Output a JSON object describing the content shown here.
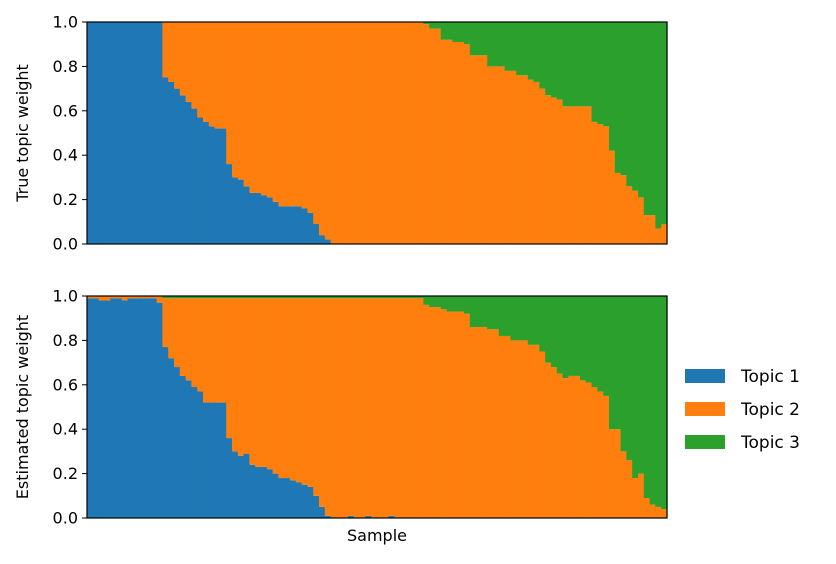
{
  "chart_data": {
    "type": "bar",
    "stacked": true,
    "n_samples": 100,
    "legend": {
      "placement": "right",
      "entries": [
        {
          "name": "Topic 1",
          "color": "#1f77b4"
        },
        {
          "name": "Topic 2",
          "color": "#ff7f0e"
        },
        {
          "name": "Topic 3",
          "color": "#2ca02c"
        }
      ]
    },
    "xlabel": "Sample",
    "panels": [
      {
        "ylabel": "True topic weight",
        "ylim": [
          0,
          1
        ],
        "yticks": [
          "0.0",
          "0.2",
          "0.4",
          "0.6",
          "0.8",
          "1.0"
        ],
        "series": [
          {
            "name": "Topic 1",
            "values": [
              1.0,
              1.0,
              1.0,
              1.0,
              1.0,
              1.0,
              1.0,
              1.0,
              1.0,
              1.0,
              1.0,
              1.0,
              1.0,
              0.75,
              0.73,
              0.7,
              0.67,
              0.64,
              0.61,
              0.57,
              0.55,
              0.53,
              0.52,
              0.52,
              0.36,
              0.3,
              0.29,
              0.26,
              0.23,
              0.23,
              0.22,
              0.21,
              0.19,
              0.17,
              0.17,
              0.17,
              0.17,
              0.16,
              0.14,
              0.09,
              0.04,
              0.02,
              0.0,
              0.0,
              0.0,
              0.0,
              0.0,
              0.0,
              0.0,
              0.0,
              0.0,
              0.0,
              0.0,
              0.0,
              0.0,
              0.0,
              0.0,
              0.0,
              0.0,
              0.0,
              0.0,
              0.0,
              0.0,
              0.0,
              0.0,
              0.0,
              0.0,
              0.0,
              0.0,
              0.0,
              0.0,
              0.0,
              0.0,
              0.0,
              0.0,
              0.0,
              0.0,
              0.0,
              0.0,
              0.0,
              0.0,
              0.0,
              0.0,
              0.0,
              0.0,
              0.0,
              0.0,
              0.0,
              0.0,
              0.0,
              0.0,
              0.0,
              0.0,
              0.0,
              0.0,
              0.0,
              0.0,
              0.0,
              0.0,
              0.0
            ]
          },
          {
            "name": "Topic 2",
            "values": [
              0.0,
              0.0,
              0.0,
              0.0,
              0.0,
              0.0,
              0.0,
              0.0,
              0.0,
              0.0,
              0.0,
              0.0,
              0.0,
              0.25,
              0.27,
              0.3,
              0.33,
              0.36,
              0.39,
              0.43,
              0.45,
              0.47,
              0.48,
              0.48,
              0.64,
              0.7,
              0.71,
              0.74,
              0.77,
              0.77,
              0.78,
              0.79,
              0.81,
              0.83,
              0.83,
              0.83,
              0.83,
              0.84,
              0.86,
              0.91,
              0.96,
              0.98,
              1.0,
              1.0,
              1.0,
              1.0,
              1.0,
              1.0,
              1.0,
              1.0,
              1.0,
              1.0,
              1.0,
              1.0,
              1.0,
              1.0,
              1.0,
              1.0,
              0.99,
              0.97,
              0.97,
              0.92,
              0.92,
              0.91,
              0.91,
              0.9,
              0.85,
              0.85,
              0.85,
              0.8,
              0.8,
              0.8,
              0.78,
              0.78,
              0.76,
              0.76,
              0.74,
              0.73,
              0.7,
              0.67,
              0.66,
              0.65,
              0.62,
              0.62,
              0.62,
              0.62,
              0.62,
              0.55,
              0.54,
              0.53,
              0.42,
              0.32,
              0.31,
              0.26,
              0.24,
              0.21,
              0.13,
              0.13,
              0.07,
              0.09
            ]
          },
          {
            "name": "Topic 3",
            "values": [
              0.0,
              0.0,
              0.0,
              0.0,
              0.0,
              0.0,
              0.0,
              0.0,
              0.0,
              0.0,
              0.0,
              0.0,
              0.0,
              0.0,
              0.0,
              0.0,
              0.0,
              0.0,
              0.0,
              0.0,
              0.0,
              0.0,
              0.0,
              0.0,
              0.0,
              0.0,
              0.0,
              0.0,
              0.0,
              0.0,
              0.0,
              0.0,
              0.0,
              0.0,
              0.0,
              0.0,
              0.0,
              0.0,
              0.0,
              0.0,
              0.0,
              0.0,
              0.0,
              0.0,
              0.0,
              0.0,
              0.0,
              0.0,
              0.0,
              0.0,
              0.0,
              0.0,
              0.0,
              0.0,
              0.0,
              0.0,
              0.0,
              0.0,
              0.01,
              0.03,
              0.03,
              0.08,
              0.08,
              0.09,
              0.09,
              0.1,
              0.15,
              0.15,
              0.15,
              0.2,
              0.2,
              0.2,
              0.22,
              0.22,
              0.24,
              0.24,
              0.26,
              0.27,
              0.3,
              0.33,
              0.34,
              0.35,
              0.38,
              0.38,
              0.38,
              0.38,
              0.38,
              0.45,
              0.46,
              0.47,
              0.58,
              0.68,
              0.69,
              0.74,
              0.76,
              0.79,
              0.87,
              0.87,
              0.93,
              0.91
            ]
          }
        ]
      },
      {
        "ylabel": "Estimated topic weight",
        "ylim": [
          0,
          1
        ],
        "yticks": [
          "0.0",
          "0.2",
          "0.4",
          "0.6",
          "0.8",
          "1.0"
        ],
        "series": [
          {
            "name": "Topic 1",
            "values": [
              0.99,
              0.99,
              0.98,
              0.98,
              0.99,
              0.99,
              0.98,
              0.99,
              0.99,
              0.99,
              0.99,
              0.99,
              0.97,
              0.77,
              0.72,
              0.68,
              0.64,
              0.62,
              0.59,
              0.57,
              0.52,
              0.52,
              0.52,
              0.52,
              0.36,
              0.3,
              0.28,
              0.29,
              0.24,
              0.23,
              0.23,
              0.22,
              0.2,
              0.18,
              0.18,
              0.17,
              0.16,
              0.15,
              0.14,
              0.1,
              0.05,
              0.01,
              0.0,
              0.0,
              0.0,
              0.01,
              0.0,
              0.0,
              0.01,
              0.0,
              0.0,
              0.0,
              0.01,
              0.0,
              0.0,
              0.0,
              0.0,
              0.0,
              0.0,
              0.0,
              0.0,
              0.0,
              0.0,
              0.0,
              0.0,
              0.0,
              0.0,
              0.0,
              0.0,
              0.0,
              0.0,
              0.0,
              0.0,
              0.0,
              0.0,
              0.0,
              0.0,
              0.0,
              0.0,
              0.0,
              0.0,
              0.0,
              0.0,
              0.0,
              0.0,
              0.0,
              0.0,
              0.0,
              0.0,
              0.0,
              0.0,
              0.0,
              0.0,
              0.0,
              0.0,
              0.0,
              0.0,
              0.0,
              0.0,
              0.0
            ]
          },
          {
            "name": "Topic 2",
            "values": [
              0.01,
              0.01,
              0.02,
              0.02,
              0.01,
              0.01,
              0.02,
              0.01,
              0.01,
              0.01,
              0.01,
              0.01,
              0.03,
              0.22,
              0.27,
              0.31,
              0.35,
              0.37,
              0.4,
              0.42,
              0.47,
              0.47,
              0.47,
              0.47,
              0.63,
              0.69,
              0.71,
              0.7,
              0.75,
              0.76,
              0.76,
              0.77,
              0.79,
              0.81,
              0.81,
              0.82,
              0.83,
              0.84,
              0.85,
              0.89,
              0.94,
              0.98,
              0.99,
              0.99,
              0.99,
              0.98,
              0.99,
              0.99,
              0.98,
              0.99,
              0.99,
              0.99,
              0.98,
              0.99,
              0.99,
              0.99,
              0.99,
              0.99,
              0.96,
              0.95,
              0.95,
              0.94,
              0.93,
              0.93,
              0.93,
              0.92,
              0.86,
              0.86,
              0.86,
              0.85,
              0.85,
              0.82,
              0.82,
              0.8,
              0.8,
              0.8,
              0.78,
              0.78,
              0.75,
              0.7,
              0.68,
              0.65,
              0.63,
              0.64,
              0.64,
              0.62,
              0.61,
              0.59,
              0.57,
              0.55,
              0.4,
              0.4,
              0.3,
              0.26,
              0.18,
              0.2,
              0.09,
              0.06,
              0.05,
              0.04
            ]
          },
          {
            "name": "Topic 3",
            "values": [
              0.0,
              0.0,
              0.0,
              0.0,
              0.0,
              0.0,
              0.0,
              0.0,
              0.0,
              0.0,
              0.0,
              0.0,
              0.0,
              0.01,
              0.01,
              0.01,
              0.01,
              0.01,
              0.01,
              0.01,
              0.01,
              0.01,
              0.01,
              0.01,
              0.01,
              0.01,
              0.01,
              0.01,
              0.01,
              0.01,
              0.01,
              0.01,
              0.01,
              0.01,
              0.01,
              0.01,
              0.01,
              0.01,
              0.01,
              0.01,
              0.01,
              0.01,
              0.01,
              0.01,
              0.01,
              0.01,
              0.01,
              0.01,
              0.01,
              0.01,
              0.01,
              0.01,
              0.01,
              0.01,
              0.01,
              0.01,
              0.01,
              0.01,
              0.04,
              0.05,
              0.05,
              0.06,
              0.07,
              0.07,
              0.07,
              0.08,
              0.14,
              0.14,
              0.14,
              0.15,
              0.15,
              0.18,
              0.18,
              0.2,
              0.2,
              0.2,
              0.22,
              0.22,
              0.25,
              0.3,
              0.32,
              0.35,
              0.37,
              0.36,
              0.36,
              0.38,
              0.39,
              0.41,
              0.43,
              0.45,
              0.6,
              0.6,
              0.7,
              0.74,
              0.82,
              0.8,
              0.91,
              0.94,
              0.95,
              0.96
            ]
          }
        ]
      }
    ]
  }
}
